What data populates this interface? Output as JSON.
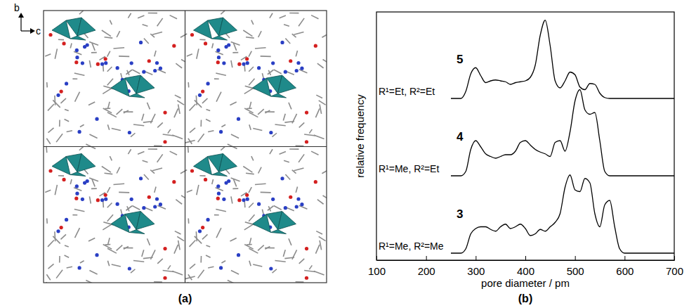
{
  "panel_labels": [
    "(a)",
    "(b)"
  ],
  "structure": {
    "axes": [
      "b",
      "c"
    ]
  },
  "chart_data": {
    "type": "line",
    "xlabel": "pore diameter / pm",
    "ylabel": "relative frequency",
    "xlim": [
      100,
      700
    ],
    "xticks": [
      100,
      200,
      300,
      400,
      500,
      600,
      700
    ],
    "ylim": [
      0,
      1
    ],
    "tick_labels": "x",
    "grid": false,
    "annotations": [
      "R¹=Et, R²=Et",
      "R¹=Me, R²=Et",
      "R¹=Me, R²=Me"
    ],
    "x": [
      250,
      260,
      270,
      280,
      290,
      300,
      310,
      320,
      330,
      340,
      350,
      360,
      370,
      380,
      390,
      400,
      410,
      420,
      430,
      440,
      450,
      460,
      470,
      480,
      490,
      500,
      510,
      520,
      530,
      540,
      550,
      560,
      570,
      580,
      590,
      600,
      700
    ],
    "series": [
      {
        "name": "5",
        "color": "#000000",
        "values": [
          0,
          0,
          0,
          0.08,
          0.28,
          0.35,
          0.26,
          0.18,
          0.2,
          0.21,
          0.2,
          0.19,
          0.16,
          0.18,
          0.19,
          0.2,
          0.24,
          0.38,
          0.72,
          0.89,
          0.6,
          0.2,
          0.12,
          0.2,
          0.3,
          0.27,
          0.13,
          0.1,
          0.17,
          0.16,
          0.06,
          0.01,
          0,
          0,
          0,
          0,
          0
        ]
      },
      {
        "name": "4",
        "color": "#000000",
        "values": [
          0,
          0,
          0,
          0.05,
          0.3,
          0.4,
          0.33,
          0.25,
          0.22,
          0.2,
          0.22,
          0.24,
          0.24,
          0.28,
          0.38,
          0.4,
          0.35,
          0.3,
          0.27,
          0.25,
          0.22,
          0.38,
          0.4,
          0.28,
          0.5,
          0.85,
          0.98,
          0.75,
          0.7,
          0.72,
          0.4,
          0.05,
          0,
          0,
          0,
          0,
          0
        ]
      },
      {
        "name": "3",
        "color": "#000000",
        "values": [
          0,
          0,
          0,
          0.05,
          0.22,
          0.28,
          0.3,
          0.3,
          0.27,
          0.25,
          0.3,
          0.33,
          0.28,
          0.3,
          0.33,
          0.28,
          0.2,
          0.22,
          0.27,
          0.25,
          0.3,
          0.35,
          0.45,
          0.75,
          0.89,
          0.72,
          0.7,
          0.85,
          0.8,
          0.45,
          0.3,
          0.55,
          0.6,
          0.3,
          0.05,
          0,
          0
        ]
      }
    ]
  }
}
